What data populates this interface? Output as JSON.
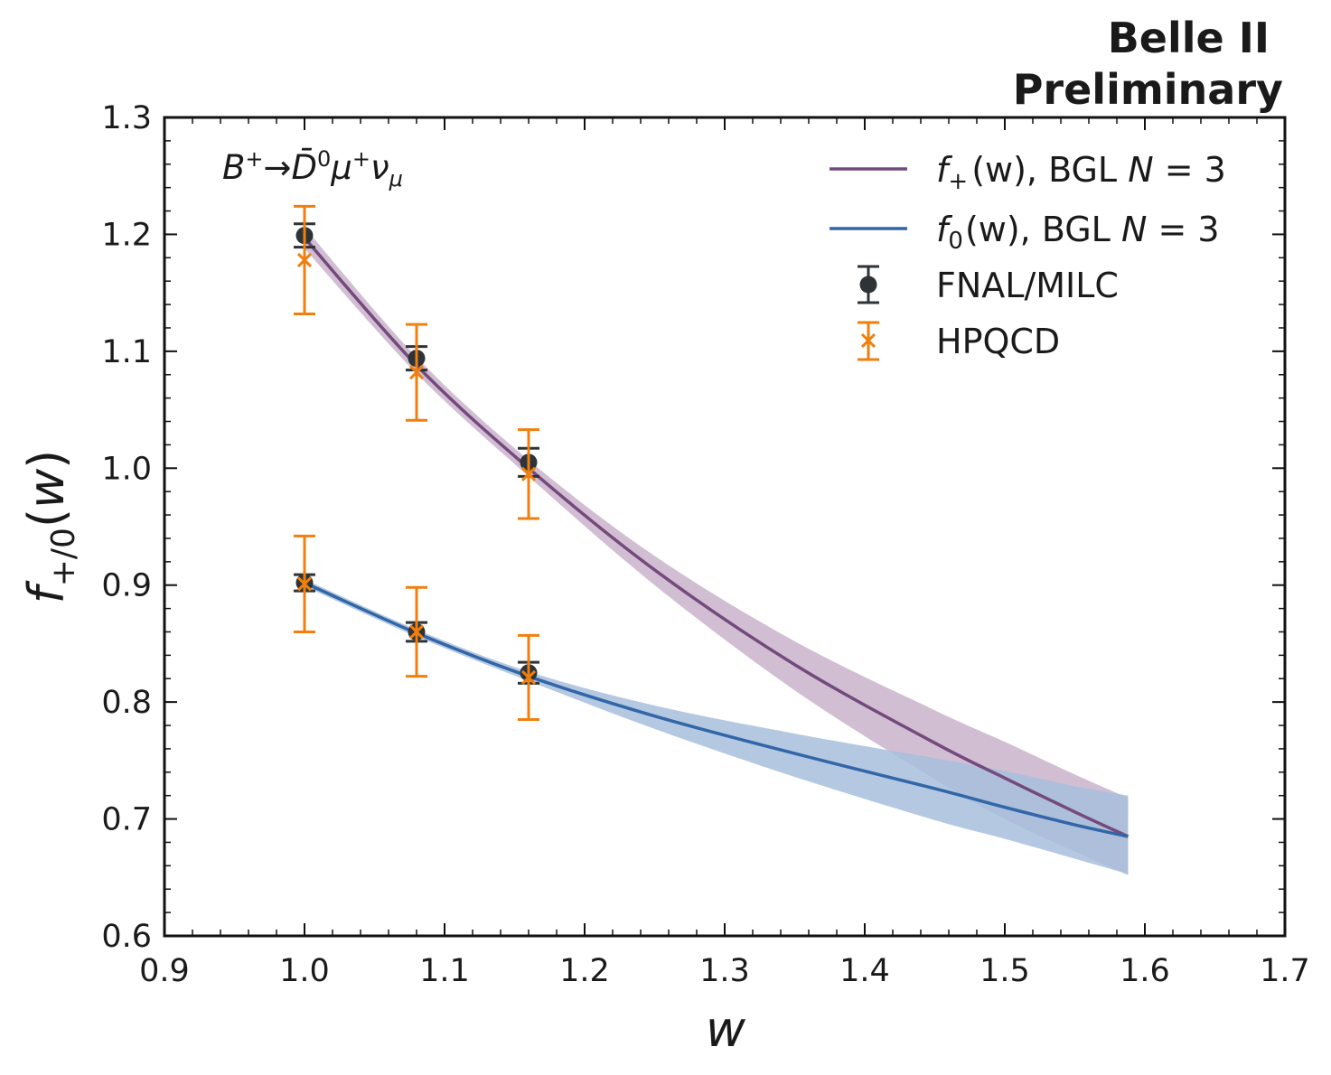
{
  "banner": {
    "line1": "Belle II",
    "line2": "Preliminary"
  },
  "chart_data": {
    "type": "line",
    "title": "",
    "xlabel": "w",
    "ylabel": "f+/0(w)",
    "xlim": [
      0.9,
      1.7
    ],
    "ylim": [
      0.6,
      1.3
    ],
    "x_ticks": [
      "0.9",
      "1.0",
      "1.1",
      "1.2",
      "1.3",
      "1.4",
      "1.5",
      "1.6",
      "1.7"
    ],
    "y_ticks": [
      "0.6",
      "0.7",
      "0.8",
      "0.9",
      "1.0",
      "1.1",
      "1.2",
      "1.3"
    ],
    "grid": false,
    "legend_position": "top-right",
    "annotation": {
      "B": "B",
      "plus": "+",
      "arrow": "→",
      "D": "D̄",
      "zero": "0",
      "mu": "μ",
      "nu": "ν"
    },
    "series": [
      {
        "name": "f+(w), BGL N = 3",
        "legend": {
          "f": "f",
          "sub": "+",
          "rest": "(w), BGL",
          "N": "N",
          "eq": " = 3"
        },
        "kind": "band-line",
        "color": "#744a7c",
        "band_color": "#c9b3cb",
        "x": [
          1.0,
          1.08,
          1.16,
          1.25,
          1.35,
          1.45,
          1.5,
          1.55,
          1.588
        ],
        "y": [
          1.197,
          1.088,
          1.0,
          0.913,
          0.832,
          0.765,
          0.735,
          0.706,
          0.685
        ],
        "band_lower": [
          1.188,
          1.081,
          0.993,
          0.9,
          0.81,
          0.734,
          0.7,
          0.672,
          0.652
        ],
        "band_upper": [
          1.206,
          1.095,
          1.007,
          0.925,
          0.852,
          0.793,
          0.766,
          0.738,
          0.718
        ]
      },
      {
        "name": "f0(w), BGL N = 3",
        "legend": {
          "f": "f",
          "sub": "0",
          "rest": "(w), BGL",
          "N": "N",
          "eq": " = 3"
        },
        "kind": "band-line",
        "color": "#3166a8",
        "band_color": "#a7bfdc",
        "x": [
          1.0,
          1.08,
          1.16,
          1.25,
          1.35,
          1.45,
          1.5,
          1.55,
          1.588
        ],
        "y": [
          0.902,
          0.859,
          0.822,
          0.788,
          0.756,
          0.726,
          0.71,
          0.695,
          0.685
        ],
        "band_lower": [
          0.899,
          0.856,
          0.818,
          0.777,
          0.736,
          0.699,
          0.683,
          0.666,
          0.653
        ],
        "band_upper": [
          0.905,
          0.862,
          0.826,
          0.797,
          0.773,
          0.752,
          0.741,
          0.728,
          0.72
        ]
      },
      {
        "name": "FNAL/MILC",
        "kind": "points",
        "marker": "circle",
        "color": "#2d3337",
        "points": [
          {
            "x": 1.0,
            "y": 1.199,
            "err": 0.01
          },
          {
            "x": 1.08,
            "y": 1.094,
            "err": 0.01
          },
          {
            "x": 1.16,
            "y": 1.005,
            "err": 0.012
          },
          {
            "x": 1.0,
            "y": 0.902,
            "err": 0.007
          },
          {
            "x": 1.08,
            "y": 0.86,
            "err": 0.008
          },
          {
            "x": 1.16,
            "y": 0.825,
            "err": 0.009
          }
        ]
      },
      {
        "name": "HPQCD",
        "kind": "points",
        "marker": "x",
        "color": "#f07f0e",
        "points": [
          {
            "x": 1.0,
            "y": 1.178,
            "err": 0.046
          },
          {
            "x": 1.08,
            "y": 1.082,
            "err": 0.041
          },
          {
            "x": 1.16,
            "y": 0.995,
            "err": 0.038
          },
          {
            "x": 1.0,
            "y": 0.901,
            "err": 0.041
          },
          {
            "x": 1.08,
            "y": 0.86,
            "err": 0.038
          },
          {
            "x": 1.16,
            "y": 0.821,
            "err": 0.036
          }
        ]
      }
    ]
  }
}
